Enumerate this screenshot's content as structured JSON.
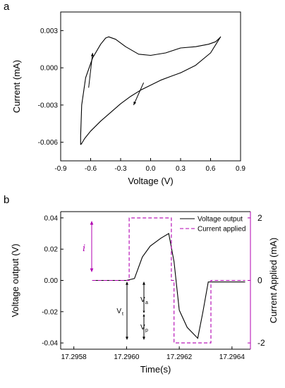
{
  "colors": {
    "black": "#000000",
    "magenta": "#B100B1"
  },
  "chart_data": [
    {
      "panel_label": "a",
      "type": "line",
      "xlabel": "Voltage (V)",
      "ylabel": "Current (mA)",
      "xlim": [
        -0.9,
        0.9
      ],
      "ylim": [
        -0.0075,
        0.0045
      ],
      "xticks": [
        "-0.9",
        "-0.6",
        "-0.3",
        "0.0",
        "0.3",
        "0.6",
        "0.9"
      ],
      "yticks": [
        "-0.006",
        "-0.003",
        "0.000",
        "0.003"
      ],
      "xtick_values": [
        -0.9,
        -0.6,
        -0.3,
        0.0,
        0.3,
        0.6,
        0.9
      ],
      "ytick_values": [
        -0.006,
        -0.003,
        0.0,
        0.003
      ],
      "grid": false,
      "series": [
        {
          "x": [
            -0.7,
            -0.7,
            -0.69,
            -0.65,
            -0.58,
            -0.5,
            -0.45,
            -0.42,
            -0.35,
            -0.25,
            -0.12,
            0.0,
            0.15,
            0.3,
            0.45,
            0.58,
            0.65,
            0.69,
            0.7,
            0.6,
            0.45,
            0.3,
            0.2,
            0.1,
            0.0,
            -0.1,
            -0.2,
            -0.3,
            -0.4,
            -0.5,
            -0.6,
            -0.66,
            -0.69,
            -0.7
          ],
          "y": [
            -0.0062,
            -0.0055,
            -0.003,
            -0.0008,
            0.0008,
            0.0019,
            0.0024,
            0.0025,
            0.0023,
            0.0017,
            0.0011,
            0.001,
            0.0012,
            0.0016,
            0.0017,
            0.0019,
            0.0021,
            0.0024,
            0.0025,
            0.0012,
            0.0002,
            -0.0004,
            -0.0007,
            -0.001,
            -0.0014,
            -0.0018,
            -0.0023,
            -0.0029,
            -0.0036,
            -0.0043,
            -0.0051,
            -0.0057,
            -0.0061,
            -0.0062
          ]
        }
      ],
      "arrows": [
        {
          "from": [
            -0.62,
            -0.0016
          ],
          "to": [
            -0.58,
            0.0012
          ]
        },
        {
          "from": [
            -0.07,
            -0.0012
          ],
          "to": [
            -0.17,
            -0.003
          ]
        }
      ]
    },
    {
      "panel_label": "b",
      "type": "line",
      "xlabel": "Time(s)",
      "ylabel": "Voltage output (V)",
      "y2label": "Current Applied (mA)",
      "xlim": [
        17.29575,
        17.29647
      ],
      "ylim": [
        -0.044,
        0.044
      ],
      "y2lim": [
        -2.2,
        2.2
      ],
      "xticks": [
        "17.2958",
        "17.2960",
        "17.2962",
        "17.2964"
      ],
      "xtick_values": [
        17.2958,
        17.296,
        17.2962,
        17.2964
      ],
      "yticks": [
        "-0.04",
        "-0.02",
        "0.00",
        "0.02",
        "0.04"
      ],
      "ytick_values": [
        -0.04,
        -0.02,
        0.0,
        0.02,
        0.04
      ],
      "y2ticks": [
        "-2",
        "0",
        "2"
      ],
      "y2tick_values": [
        -2,
        0,
        2
      ],
      "grid": false,
      "legend": {
        "position": "top-right",
        "entries": [
          "Voltage output",
          "Current applied"
        ]
      },
      "series": [
        {
          "name": "Voltage output",
          "style": "solid",
          "axis": "left",
          "x": [
            17.29587,
            17.296,
            17.29603,
            17.29606,
            17.29609,
            17.29613,
            17.29616,
            17.29618,
            17.2962,
            17.29623,
            17.29627,
            17.29629,
            17.29631,
            17.29633,
            17.29645
          ],
          "y": [
            0.0,
            0.0,
            0.0012,
            0.015,
            0.022,
            0.027,
            0.03,
            0.012,
            -0.019,
            -0.03,
            -0.037,
            -0.02,
            -0.001,
            -0.001,
            -0.001
          ]
        },
        {
          "name": "Current applied",
          "style": "dashed",
          "axis": "right",
          "x": [
            17.29587,
            17.29601,
            17.29601,
            17.29617,
            17.29617,
            17.29618,
            17.29618,
            17.29632,
            17.29632,
            17.29645
          ],
          "y": [
            0,
            0,
            2,
            2,
            0,
            0,
            -2,
            -2,
            0,
            0
          ]
        }
      ],
      "annotations": {
        "i": "i",
        "vt": "V",
        "vt_sub": "t",
        "va": "V",
        "va_sub": "a",
        "vp": "V",
        "vp_sub": "p"
      }
    }
  ]
}
